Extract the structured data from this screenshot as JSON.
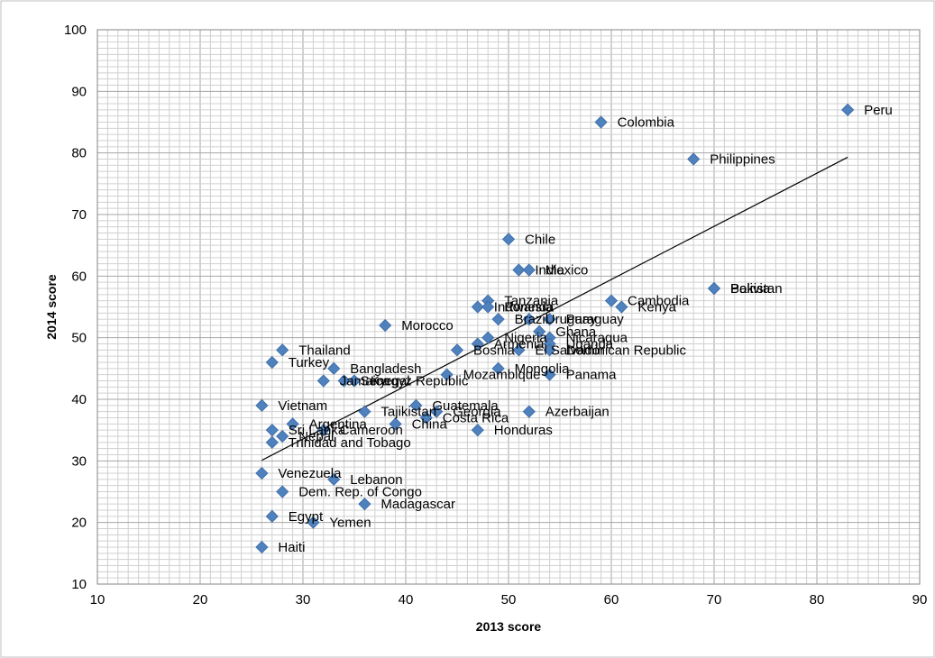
{
  "chart_data": {
    "type": "scatter",
    "title": "",
    "xlabel": "2013 score",
    "ylabel": "2014 score",
    "xlim": [
      10,
      90
    ],
    "ylim": [
      10,
      100
    ],
    "x_ticks": [
      10,
      20,
      30,
      40,
      50,
      60,
      70,
      80,
      90
    ],
    "y_ticks": [
      10,
      20,
      30,
      40,
      50,
      60,
      70,
      80,
      90,
      100
    ],
    "grid": true,
    "legend": "none",
    "marker_color": "#4F81BD",
    "trendline": {
      "type": "linear",
      "x": [
        26,
        83
      ],
      "y": [
        30.1,
        79.3
      ]
    },
    "points": [
      {
        "label": "Peru",
        "x": 83,
        "y": 87
      },
      {
        "label": "Colombia",
        "x": 59,
        "y": 85
      },
      {
        "label": "Philippines",
        "x": 68,
        "y": 79
      },
      {
        "label": "Chile",
        "x": 50,
        "y": 66
      },
      {
        "label": "India",
        "x": 51,
        "y": 61
      },
      {
        "label": "Mexico",
        "x": 52,
        "y": 61
      },
      {
        "label": "Pakistan",
        "x": 70,
        "y": 58
      },
      {
        "label": "Bolivia",
        "x": 70,
        "y": 58
      },
      {
        "label": "Cambodia",
        "x": 60,
        "y": 56
      },
      {
        "label": "Kenya",
        "x": 61,
        "y": 55
      },
      {
        "label": "Tanzania",
        "x": 48,
        "y": 56
      },
      {
        "label": "Indonesia",
        "x": 47,
        "y": 55
      },
      {
        "label": "Rwanda",
        "x": 48,
        "y": 55
      },
      {
        "label": "Uruguay",
        "x": 52,
        "y": 53
      },
      {
        "label": "Brazil",
        "x": 49,
        "y": 53
      },
      {
        "label": "Paraguay",
        "x": 54,
        "y": 53
      },
      {
        "label": "Morocco",
        "x": 38,
        "y": 52
      },
      {
        "label": "Ghana",
        "x": 53,
        "y": 51
      },
      {
        "label": "Nicaragua",
        "x": 54,
        "y": 50
      },
      {
        "label": "Nigeria",
        "x": 48,
        "y": 50
      },
      {
        "label": "Uganda",
        "x": 54,
        "y": 49
      },
      {
        "label": "Armenia",
        "x": 47,
        "y": 49
      },
      {
        "label": "Bosnia",
        "x": 45,
        "y": 48
      },
      {
        "label": "El Salvador",
        "x": 51,
        "y": 48
      },
      {
        "label": "Dominican Republic",
        "x": 54,
        "y": 48
      },
      {
        "label": "Thailand",
        "x": 28,
        "y": 48
      },
      {
        "label": "Turkey",
        "x": 27,
        "y": 46
      },
      {
        "label": "Bangladesh",
        "x": 33,
        "y": 45
      },
      {
        "label": "Mongolia",
        "x": 49,
        "y": 45
      },
      {
        "label": "Mozambique",
        "x": 44,
        "y": 44
      },
      {
        "label": "Panama",
        "x": 54,
        "y": 44
      },
      {
        "label": "Jamaica",
        "x": 32,
        "y": 43
      },
      {
        "label": "Senegal",
        "x": 34,
        "y": 43
      },
      {
        "label": "Kyrgyz Republic",
        "x": 35,
        "y": 43
      },
      {
        "label": "Vietnam",
        "x": 26,
        "y": 39
      },
      {
        "label": "Guatemala",
        "x": 41,
        "y": 39
      },
      {
        "label": "Tajikistan",
        "x": 36,
        "y": 38
      },
      {
        "label": "Georgia",
        "x": 43,
        "y": 38
      },
      {
        "label": "Azerbaijan",
        "x": 52,
        "y": 38
      },
      {
        "label": "Costa Rica",
        "x": 42,
        "y": 37
      },
      {
        "label": "China",
        "x": 39,
        "y": 36
      },
      {
        "label": "Argentina",
        "x": 29,
        "y": 36
      },
      {
        "label": "Honduras",
        "x": 47,
        "y": 35
      },
      {
        "label": "Sri Lanka",
        "x": 27,
        "y": 35
      },
      {
        "label": "Cameroon",
        "x": 32,
        "y": 35
      },
      {
        "label": "Nepal",
        "x": 28,
        "y": 34
      },
      {
        "label": "Trinidad and Tobago",
        "x": 27,
        "y": 33
      },
      {
        "label": "Venezuela",
        "x": 26,
        "y": 28
      },
      {
        "label": "Lebanon",
        "x": 33,
        "y": 27
      },
      {
        "label": "Dem. Rep. of Congo",
        "x": 28,
        "y": 25
      },
      {
        "label": "Madagascar",
        "x": 36,
        "y": 23
      },
      {
        "label": "Egypt",
        "x": 27,
        "y": 21
      },
      {
        "label": "Yemen",
        "x": 31,
        "y": 20
      },
      {
        "label": "Haiti",
        "x": 26,
        "y": 16
      }
    ]
  }
}
